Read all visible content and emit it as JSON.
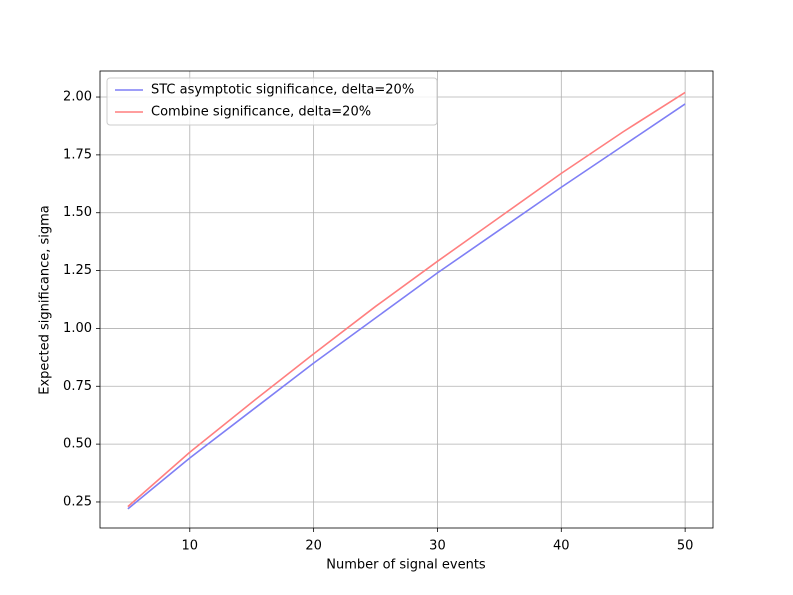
{
  "chart_data": {
    "type": "line",
    "x_label": "Number of signal events",
    "y_label": "Expected significance, sigma",
    "x": [
      5,
      10,
      15,
      20,
      25,
      30,
      35,
      40,
      45,
      50
    ],
    "series": [
      {
        "name": "STC asymptotic significance, delta=20%",
        "color": "#7f7ff5",
        "values": [
          0.22,
          0.44,
          0.645,
          0.85,
          1.045,
          1.24,
          1.425,
          1.61,
          1.79,
          1.97
        ]
      },
      {
        "name": "Combine significance, delta=20%",
        "color": "#ff7f7f",
        "values": [
          0.23,
          0.465,
          0.68,
          0.89,
          1.095,
          1.29,
          1.48,
          1.67,
          1.85,
          2.02
        ]
      }
    ],
    "xlim": [
      2.75,
      52.25
    ],
    "xticks": [
      10,
      20,
      30,
      40,
      50
    ],
    "ylim": [
      0.1375,
      2.1125
    ],
    "yticks": [
      0.25,
      {
        "value": 0.5,
        "label": "0.50"
      },
      0.75,
      {
        "value": 1,
        "label": "1.00"
      },
      1.25,
      {
        "value": 1.5,
        "label": "1.50"
      },
      1.75,
      {
        "value": 2,
        "label": "2.00"
      }
    ],
    "grid": true,
    "legend": "upper-left"
  }
}
